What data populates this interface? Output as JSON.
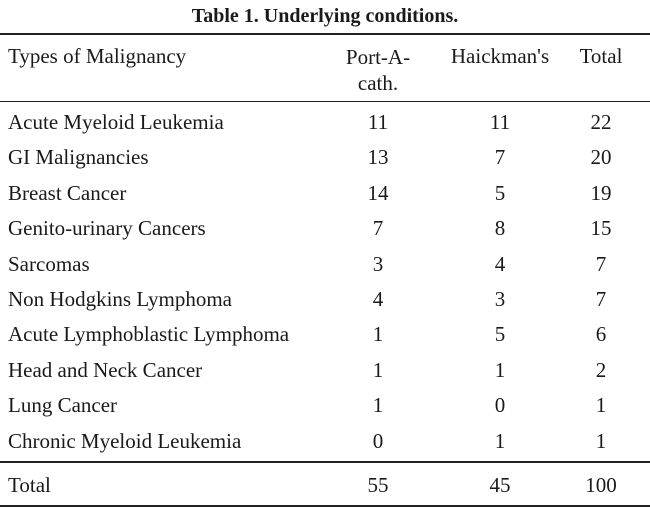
{
  "title": "Table 1.  Underlying conditions.",
  "table": {
    "header": [
      "Types of Malignancy",
      "Port-A-cath.",
      "Haickman's",
      "Total"
    ],
    "rows": [
      [
        "Acute Myeloid Leukemia",
        11,
        11,
        22
      ],
      [
        "GI Malignancies",
        13,
        7,
        20
      ],
      [
        "Breast Cancer",
        14,
        5,
        19
      ],
      [
        "Genito-urinary Cancers",
        7,
        8,
        15
      ],
      [
        "Sarcomas",
        3,
        4,
        7
      ],
      [
        "Non Hodgkins Lymphoma",
        4,
        3,
        7
      ],
      [
        "Acute Lymphoblastic Lymphoma",
        1,
        5,
        6
      ],
      [
        "Head and Neck Cancer",
        1,
        1,
        2
      ],
      [
        "Lung Cancer",
        1,
        0,
        1
      ],
      [
        "Chronic Myeloid  Leukemia",
        0,
        1,
        1
      ]
    ],
    "total": [
      "Total",
      55,
      45,
      100
    ]
  }
}
